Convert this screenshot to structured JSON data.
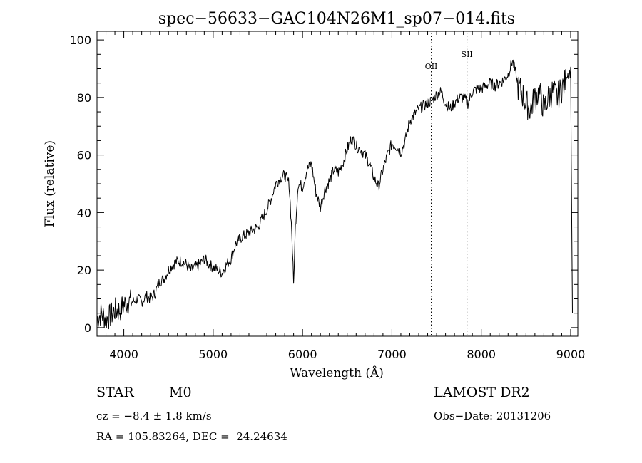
{
  "chart_data": {
    "type": "line",
    "title": "spec−56633−GAC104N26M1_sp07−014.fits",
    "xlabel": "Wavelength (Å)",
    "ylabel": "Flux (relative)",
    "xlim": [
      3700,
      9080
    ],
    "ylim": [
      -3,
      103
    ],
    "xticks": [
      4000,
      5000,
      6000,
      7000,
      8000,
      9000
    ],
    "yticks": [
      0,
      20,
      40,
      60,
      80,
      100
    ],
    "xtick_labels": [
      "4000",
      "5000",
      "6000",
      "7000",
      "8000",
      "9000"
    ],
    "ytick_labels": [
      "0",
      "20",
      "40",
      "60",
      "80",
      "100"
    ],
    "grid": false,
    "series": [
      {
        "color": "#000000",
        "x": [
          3700,
          3750,
          3800,
          3850,
          3900,
          3950,
          4000,
          4050,
          4100,
          4150,
          4200,
          4250,
          4300,
          4350,
          4400,
          4450,
          4500,
          4550,
          4600,
          4650,
          4700,
          4750,
          4800,
          4850,
          4900,
          4950,
          5000,
          5050,
          5100,
          5150,
          5200,
          5250,
          5300,
          5350,
          5400,
          5450,
          5500,
          5550,
          5600,
          5650,
          5700,
          5750,
          5800,
          5850,
          5880,
          5900,
          5920,
          5950,
          6000,
          6050,
          6100,
          6150,
          6200,
          6250,
          6300,
          6350,
          6400,
          6450,
          6500,
          6550,
          6600,
          6650,
          6700,
          6750,
          6800,
          6850,
          6900,
          6950,
          7000,
          7050,
          7100,
          7150,
          7200,
          7250,
          7300,
          7350,
          7400,
          7450,
          7500,
          7550,
          7600,
          7650,
          7700,
          7750,
          7800,
          7850,
          7900,
          7950,
          8000,
          8050,
          8100,
          8150,
          8200,
          8250,
          8300,
          8350,
          8400,
          8450,
          8500,
          8550,
          8600,
          8650,
          8700,
          8750,
          8800,
          8850,
          8900,
          8950,
          9000,
          9020
        ],
        "y": [
          3,
          5,
          3,
          4,
          6,
          6,
          8,
          9,
          9,
          10,
          9,
          11,
          10,
          12,
          16,
          17,
          20,
          22,
          23,
          23,
          22,
          20,
          21,
          22,
          24,
          22,
          21,
          20,
          19,
          22,
          24,
          29,
          31,
          32,
          33,
          34,
          35,
          38,
          41,
          45,
          50,
          52,
          53,
          50,
          33,
          15,
          35,
          50,
          49,
          55,
          57,
          47,
          42,
          48,
          51,
          55,
          54,
          57,
          62,
          66,
          63,
          62,
          60,
          57,
          52,
          49,
          55,
          60,
          64,
          63,
          61,
          65,
          72,
          74,
          76,
          77,
          78,
          79,
          81,
          82,
          78,
          76,
          78,
          80,
          80,
          78,
          82,
          83,
          83,
          84,
          85,
          84,
          85,
          86,
          88,
          93,
          86,
          84,
          80,
          78,
          82,
          84,
          78,
          82,
          84,
          82,
          85,
          88,
          89,
          5
        ]
      }
    ],
    "annotations": [
      {
        "text": "OII",
        "x": 7440
      },
      {
        "text": "SII",
        "x": 7840
      }
    ]
  },
  "footer": {
    "object_class": "STAR",
    "subclass": "M0",
    "cz": "cz = −8.4 ± 1.8 km/s",
    "radec": "RA = 105.83264, DEC =  24.24634",
    "survey": "LAMOST DR2",
    "obs_date": "Obs−Date: 20131206"
  }
}
